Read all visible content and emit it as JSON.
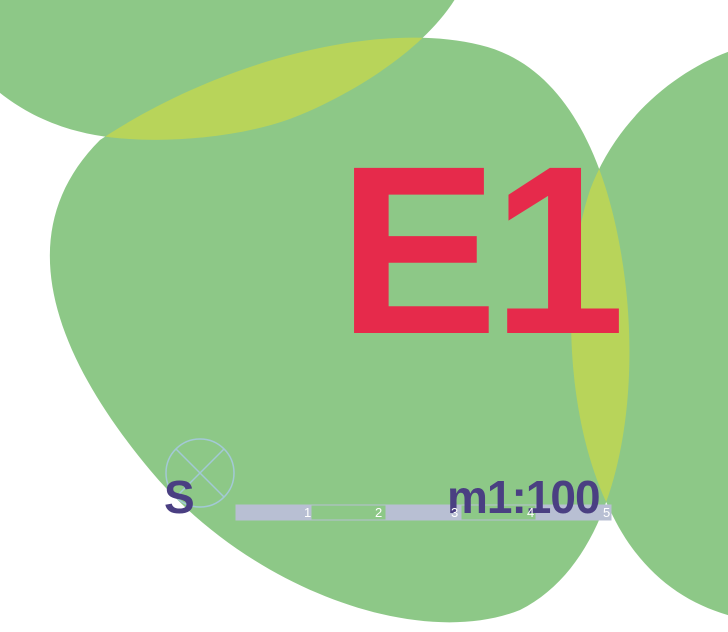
{
  "colors": {
    "background": "#ffffff",
    "blob": "#8dc887",
    "overlap": "#b8d45a",
    "title": "#e62a4b",
    "scale_text": "#4a3f82",
    "bar_filled": "#b8bfd3",
    "bar_outline": "#b8bfd3",
    "compass_line": "#a3c9d6",
    "tick_label": "#ffffff"
  },
  "title": "E1",
  "north_arrow": {
    "letter": "S",
    "icon": "compass-rose-icon"
  },
  "scale": {
    "label": "m1:100",
    "ticks": [
      "1",
      "2",
      "3",
      "4",
      "5"
    ],
    "segments_filled": [
      true,
      false,
      true,
      false,
      true
    ]
  }
}
